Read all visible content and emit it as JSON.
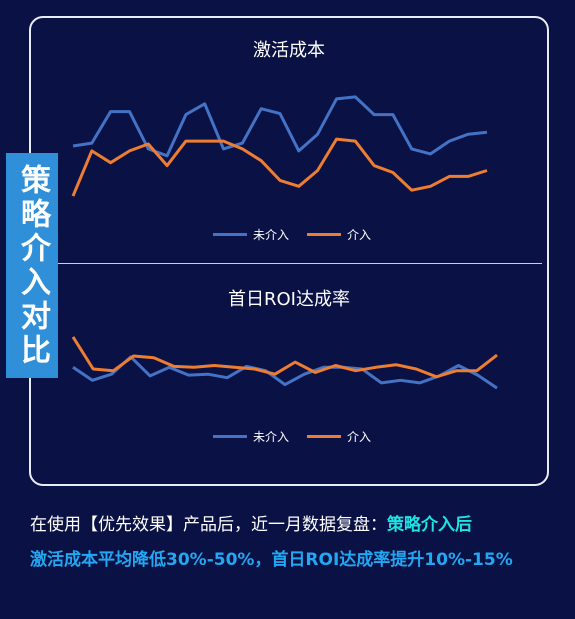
{
  "side_label": "策略介入对比",
  "caption": {
    "intro": "在使用【优先效果】产品后，近一月数据复盘：",
    "highlight_a": "策略介入后",
    "highlight_b": "激活成本平均降低30%-50%，首日ROI达成率提升10%-15%"
  },
  "colors": {
    "series_blue": "#4472c4",
    "series_orange": "#ed7d31",
    "side_label_bg": "#2f8fd8",
    "background": "#0a1145"
  },
  "chart_data": [
    {
      "type": "line",
      "title": "激活成本",
      "xlabel": "",
      "ylabel": "",
      "grid": false,
      "legend": "bottom-center",
      "x": [
        1,
        2,
        3,
        4,
        5,
        6,
        7,
        8,
        9,
        10,
        11,
        12,
        13,
        14,
        15,
        16,
        17,
        18,
        19,
        20,
        21,
        22,
        23,
        24,
        25,
        26,
        27
      ],
      "series": [
        {
          "name": "未介入",
          "color": "#4472c4",
          "values": [
            145,
            142,
            110,
            110,
            148,
            155,
            113,
            102,
            148,
            142,
            107,
            112,
            150,
            133,
            97,
            95,
            113,
            113,
            148,
            153,
            140,
            133,
            131,
            null,
            null,
            null,
            null
          ]
        },
        {
          "name": "介入",
          "color": "#ed7d31",
          "values": [
            196,
            150,
            162,
            150,
            143,
            165,
            140,
            140,
            140,
            148,
            160,
            180,
            186,
            170,
            138,
            140,
            165,
            172,
            190,
            186,
            176,
            176,
            170,
            null,
            null,
            null,
            null
          ]
        }
      ],
      "ylim": [
        90,
        200
      ]
    },
    {
      "type": "line",
      "title": "首日ROI达成率",
      "xlabel": "",
      "ylabel": "",
      "grid": false,
      "legend": "bottom-center",
      "x": [
        1,
        2,
        3,
        4,
        5,
        6,
        7,
        8,
        9,
        10,
        11,
        12,
        13,
        14,
        15,
        16,
        17,
        18,
        19,
        20,
        21,
        22,
        23,
        24,
        25,
        26
      ],
      "series": [
        {
          "name": "未介入",
          "color": "#4472c4",
          "values": [
            368,
            383,
            376,
            356,
            378,
            368,
            377,
            376,
            380,
            367,
            372,
            388,
            376,
            368,
            368,
            370,
            386,
            383,
            386,
            378,
            366,
            377,
            392,
            null,
            null,
            null
          ]
        },
        {
          "name": "介入",
          "color": "#ed7d31",
          "values": [
            333,
            370,
            372,
            355,
            357,
            367,
            368,
            366,
            368,
            370,
            376,
            362,
            374,
            366,
            372,
            368,
            365,
            370,
            379,
            372,
            372,
            354,
            null,
            null,
            null,
            null
          ]
        }
      ],
      "ylim": [
        325,
        400
      ]
    }
  ]
}
